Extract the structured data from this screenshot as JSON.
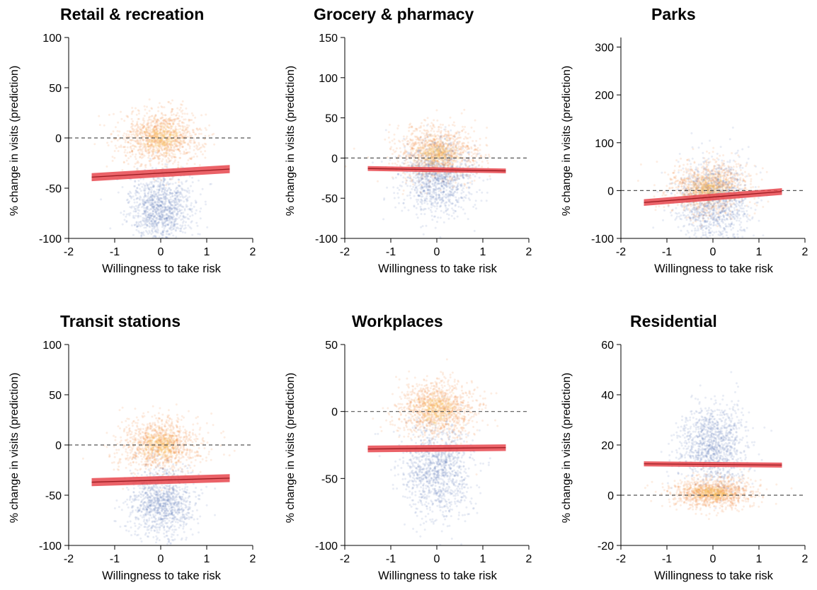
{
  "chart_data": [
    {
      "type": "scatter",
      "title": "Retail & recreation",
      "xlabel": "Willingness to take risk",
      "ylabel": "% change in visits (prediction)",
      "xlim": [
        -2,
        2
      ],
      "ylim": [
        -100,
        100
      ],
      "xticks": [
        "-2",
        "-1",
        "0",
        "1",
        "2"
      ],
      "yticks": [
        "-100",
        "-50",
        "0",
        "50",
        "100"
      ],
      "reference_line": 0,
      "clusters": [
        {
          "color": "#f28e4c",
          "cx": 0.0,
          "cy": 0,
          "sx": 0.45,
          "sy": 14
        },
        {
          "color": "#4f6fae",
          "cx": 0.0,
          "cy": -70,
          "sx": 0.35,
          "sy": 17
        }
      ],
      "fit": {
        "x": [
          -1.5,
          1.5
        ],
        "y": [
          -39,
          -31
        ],
        "ci": [
          4,
          4
        ]
      }
    },
    {
      "type": "scatter",
      "title": "Grocery & pharmacy",
      "xlabel": "Willingness to take risk",
      "ylabel": "% change in visits (prediction)",
      "xlim": [
        -2,
        2
      ],
      "ylim": [
        -100,
        150
      ],
      "xticks": [
        "-2",
        "-1",
        "0",
        "1",
        "2"
      ],
      "yticks": [
        "-100",
        "-50",
        "0",
        "50",
        "100",
        "150"
      ],
      "reference_line": 0,
      "clusters": [
        {
          "color": "#f28e4c",
          "cx": 0.0,
          "cy": 5,
          "sx": 0.45,
          "sy": 17
        },
        {
          "color": "#4f6fae",
          "cx": 0.0,
          "cy": -25,
          "sx": 0.4,
          "sy": 24
        }
      ],
      "fit": {
        "x": [
          -1.5,
          1.5
        ],
        "y": [
          -13,
          -16
        ],
        "ci": [
          3,
          3
        ]
      }
    },
    {
      "type": "scatter",
      "title": "Parks",
      "xlabel": "Willingness to take risk",
      "ylabel": "% change in visits (prediction)",
      "xlim": [
        -2,
        2
      ],
      "ylim": [
        -100,
        320
      ],
      "xticks": [
        "-2",
        "-1",
        "0",
        "1",
        "2"
      ],
      "yticks": [
        "-100",
        "0",
        "100",
        "200",
        "300"
      ],
      "reference_line": 0,
      "clusters": [
        {
          "color": "#f28e4c",
          "cx": -0.1,
          "cy": 5,
          "sx": 0.45,
          "sy": 28
        },
        {
          "color": "#4f6fae",
          "cx": 0.0,
          "cy": -25,
          "sx": 0.4,
          "sy": 45
        }
      ],
      "fit": {
        "x": [
          -1.5,
          1.5
        ],
        "y": [
          -25,
          -2
        ],
        "ci": [
          7,
          7
        ]
      }
    },
    {
      "type": "scatter",
      "title": "Transit stations",
      "xlabel": "Willingness to take risk",
      "ylabel": "% change in visits (prediction)",
      "xlim": [
        -2,
        2
      ],
      "ylim": [
        -100,
        100
      ],
      "xticks": [
        "-2",
        "-1",
        "0",
        "1",
        "2"
      ],
      "yticks": [
        "-100",
        "-50",
        "0",
        "50",
        "100"
      ],
      "reference_line": 0,
      "clusters": [
        {
          "color": "#f28e4c",
          "cx": 0.0,
          "cy": 0,
          "sx": 0.45,
          "sy": 14
        },
        {
          "color": "#4f6fae",
          "cx": 0.0,
          "cy": -58,
          "sx": 0.37,
          "sy": 18
        }
      ],
      "fit": {
        "x": [
          -1.5,
          1.5
        ],
        "y": [
          -37,
          -33
        ],
        "ci": [
          4,
          4
        ]
      }
    },
    {
      "type": "scatter",
      "title": "Workplaces",
      "xlabel": "Willingness to take risk",
      "ylabel": "% change in visits (prediction)",
      "xlim": [
        -2,
        2
      ],
      "ylim": [
        -100,
        50
      ],
      "xticks": [
        "-2",
        "-1",
        "0",
        "1",
        "2"
      ],
      "yticks": [
        "-100",
        "-50",
        "0",
        "50"
      ],
      "reference_line": 0,
      "clusters": [
        {
          "color": "#f28e4c",
          "cx": 0.0,
          "cy": 2,
          "sx": 0.45,
          "sy": 11
        },
        {
          "color": "#4f6fae",
          "cx": 0.0,
          "cy": -45,
          "sx": 0.37,
          "sy": 17
        }
      ],
      "fit": {
        "x": [
          -1.5,
          1.5
        ],
        "y": [
          -28,
          -27
        ],
        "ci": [
          2.5,
          2.5
        ]
      }
    },
    {
      "type": "scatter",
      "title": "Residential",
      "xlabel": "Willingness to take risk",
      "ylabel": "% change in visits (prediction)",
      "xlim": [
        -2,
        2
      ],
      "ylim": [
        -20,
        60
      ],
      "xticks": [
        "-2",
        "-1",
        "0",
        "1",
        "2"
      ],
      "yticks": [
        "-20",
        "0",
        "20",
        "40",
        "60"
      ],
      "reference_line": 0,
      "clusters": [
        {
          "color": "#f28e4c",
          "cx": 0.0,
          "cy": 1,
          "sx": 0.45,
          "sy": 3
        },
        {
          "color": "#4f6fae",
          "cx": 0.0,
          "cy": 20,
          "sx": 0.37,
          "sy": 8
        }
      ],
      "fit": {
        "x": [
          -1.5,
          1.5
        ],
        "y": [
          12.5,
          12
        ],
        "ci": [
          1,
          1
        ]
      }
    }
  ]
}
